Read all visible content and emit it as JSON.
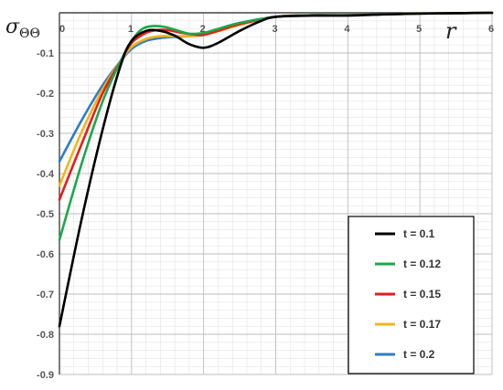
{
  "chart_data": {
    "type": "line",
    "title": "",
    "xlabel": "r",
    "ylabel": "σΘΘ",
    "xlim": [
      0,
      6
    ],
    "ylim": [
      -0.9,
      0
    ],
    "grid": true,
    "legend_position": "bottom-right",
    "x_ticks": [
      "0",
      "1",
      "2",
      "3",
      "4",
      "5",
      "6"
    ],
    "y_ticks": [
      "-0.1",
      "-0.2",
      "-0.3",
      "-0.4",
      "-0.5",
      "-0.6",
      "-0.7",
      "-0.8",
      "-0.9"
    ],
    "series": [
      {
        "name": "t = 0.1",
        "color": "#000000",
        "x": [
          0,
          0.3,
          0.6,
          0.85,
          1.0,
          1.2,
          1.4,
          1.6,
          1.8,
          2.0,
          2.2,
          2.5,
          2.8,
          3.0,
          3.5,
          4.0,
          4.5,
          5.0,
          6.0
        ],
        "y": [
          -0.78,
          -0.52,
          -0.29,
          -0.13,
          -0.07,
          -0.045,
          -0.045,
          -0.057,
          -0.078,
          -0.087,
          -0.075,
          -0.045,
          -0.02,
          -0.01,
          -0.007,
          -0.007,
          -0.004,
          -0.002,
          0
        ]
      },
      {
        "name": "t = 0.12",
        "color": "#1aa84b",
        "x": [
          0,
          0.3,
          0.6,
          0.85,
          1.0,
          1.15,
          1.3,
          1.45,
          1.6,
          1.8,
          2.0,
          2.2,
          2.5,
          3.0,
          3.5,
          4.0,
          5.0,
          6.0
        ],
        "y": [
          -0.565,
          -0.38,
          -0.22,
          -0.12,
          -0.07,
          -0.04,
          -0.033,
          -0.035,
          -0.042,
          -0.052,
          -0.05,
          -0.04,
          -0.025,
          -0.01,
          -0.006,
          -0.006,
          -0.002,
          0
        ]
      },
      {
        "name": "t = 0.15",
        "color": "#e81c1c",
        "x": [
          0,
          0.3,
          0.6,
          0.85,
          1.0,
          1.2,
          1.35,
          1.5,
          1.7,
          1.9,
          2.0,
          2.2,
          2.5,
          3.0,
          3.5,
          4.0,
          5.0,
          6.0
        ],
        "y": [
          -0.465,
          -0.33,
          -0.2,
          -0.12,
          -0.075,
          -0.05,
          -0.043,
          -0.043,
          -0.05,
          -0.055,
          -0.055,
          -0.045,
          -0.028,
          -0.01,
          -0.006,
          -0.006,
          -0.002,
          0
        ]
      },
      {
        "name": "t = 0.17",
        "color": "#f2b51b",
        "x": [
          0,
          0.3,
          0.6,
          0.85,
          1.0,
          1.2,
          1.4,
          1.6,
          1.8,
          2.0,
          2.2,
          2.5,
          3.0,
          3.5,
          4.0,
          5.0,
          6.0
        ],
        "y": [
          -0.43,
          -0.3,
          -0.19,
          -0.12,
          -0.085,
          -0.065,
          -0.058,
          -0.058,
          -0.058,
          -0.055,
          -0.046,
          -0.03,
          -0.01,
          -0.006,
          -0.006,
          -0.002,
          0
        ]
      },
      {
        "name": "t = 0.2",
        "color": "#2f7cc8",
        "x": [
          0,
          0.3,
          0.6,
          0.85,
          1.0,
          1.2,
          1.4,
          1.6,
          1.8,
          2.0,
          2.2,
          2.5,
          3.0,
          3.5,
          4.0,
          5.0,
          6.0
        ],
        "y": [
          -0.37,
          -0.27,
          -0.18,
          -0.12,
          -0.09,
          -0.07,
          -0.063,
          -0.06,
          -0.058,
          -0.054,
          -0.045,
          -0.03,
          -0.01,
          -0.006,
          -0.006,
          -0.002,
          0
        ]
      }
    ]
  }
}
